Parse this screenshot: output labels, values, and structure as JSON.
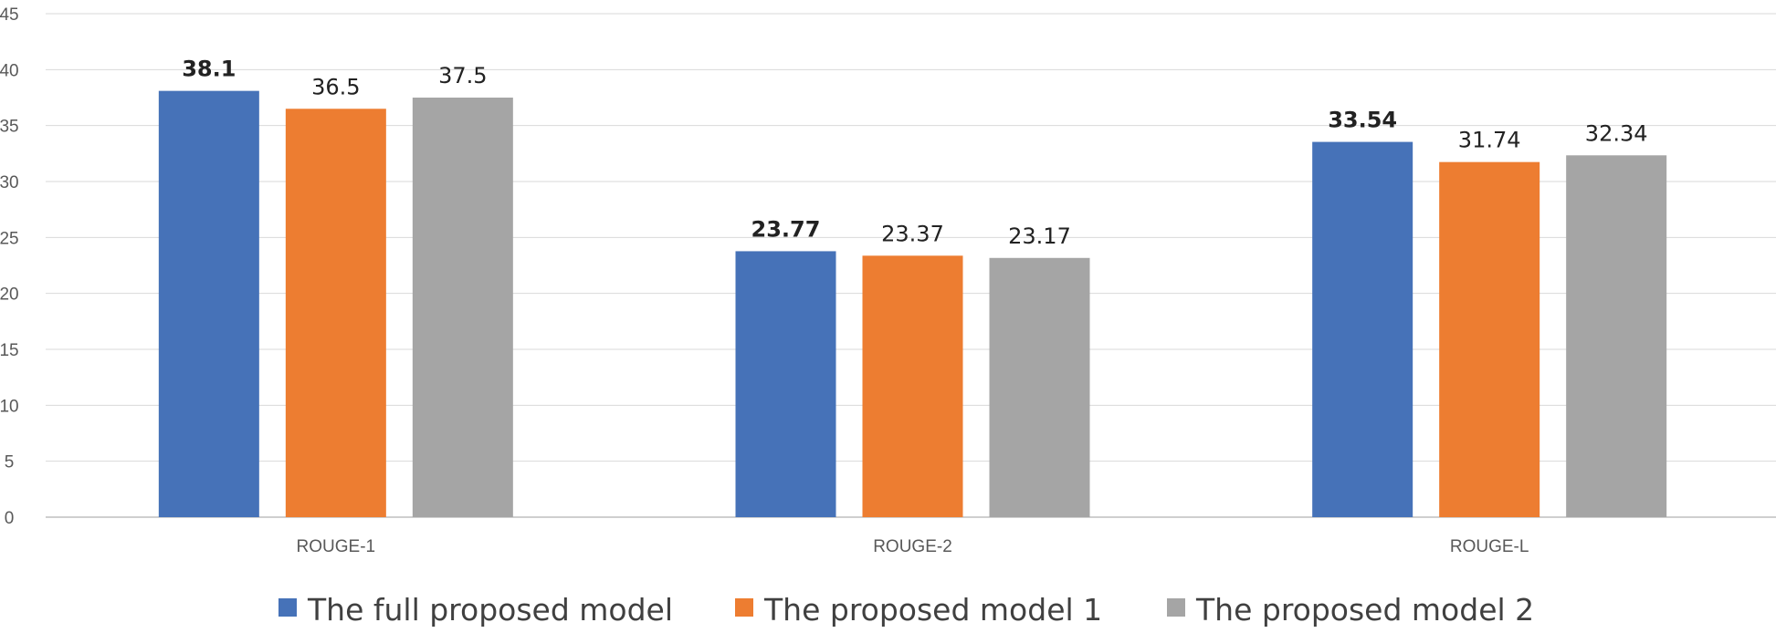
{
  "chart_data": {
    "type": "bar",
    "categories": [
      "ROUGE-1",
      "ROUGE-2",
      "ROUGE-L"
    ],
    "series": [
      {
        "name": "The full proposed model",
        "color": "#4672B8",
        "values": [
          38.1,
          23.77,
          33.54
        ],
        "labels": [
          "38.1",
          "23.77",
          "33.54"
        ]
      },
      {
        "name": "The proposed model 1",
        "color": "#ED7D31",
        "values": [
          36.5,
          23.37,
          31.74
        ],
        "labels": [
          "36.5",
          "23.37",
          "31.74"
        ]
      },
      {
        "name": "The proposed model 2",
        "color": "#A5A5A5",
        "values": [
          37.5,
          23.17,
          32.34
        ],
        "labels": [
          "37.5",
          "23.17",
          "32.34"
        ]
      }
    ],
    "ylim": [
      0,
      45
    ],
    "yticks": [
      "0",
      "5",
      "10",
      "15",
      "20",
      "25",
      "30",
      "35",
      "40",
      "45"
    ],
    "grid": true,
    "legend": "bottom",
    "xlabel": "",
    "ylabel": "",
    "title": ""
  }
}
